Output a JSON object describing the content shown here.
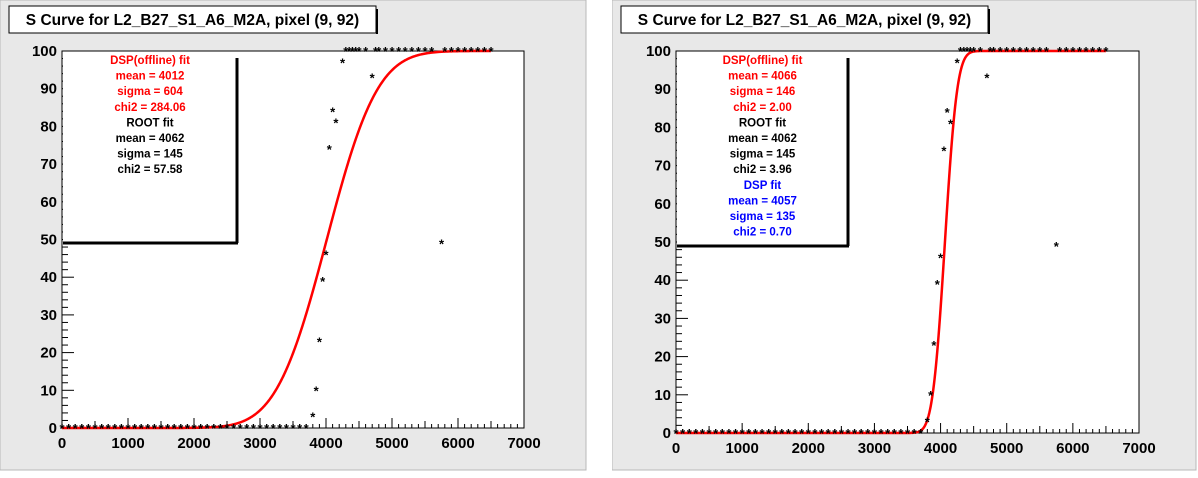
{
  "chart_data": [
    {
      "type": "scatter",
      "title": "S Curve for L2_B27_S1_A6_M2A, pixel (9, 92)",
      "xlim": [
        0,
        7000
      ],
      "ylim": [
        0,
        100
      ],
      "xticks": [
        "0",
        "1000",
        "2000",
        "3000",
        "4000",
        "5000",
        "6000",
        "7000"
      ],
      "yticks": [
        "0",
        "10",
        "20",
        "30",
        "40",
        "50",
        "60",
        "70",
        "80",
        "90",
        "100"
      ],
      "series": [
        {
          "kind": "points",
          "color": "#000000",
          "points": [
            [
              0,
              0
            ],
            [
              100,
              0
            ],
            [
              200,
              0
            ],
            [
              300,
              0
            ],
            [
              400,
              0
            ],
            [
              500,
              0
            ],
            [
              600,
              0
            ],
            [
              700,
              0
            ],
            [
              800,
              0
            ],
            [
              900,
              0
            ],
            [
              1000,
              0
            ],
            [
              1100,
              0
            ],
            [
              1200,
              0
            ],
            [
              1300,
              0
            ],
            [
              1400,
              0
            ],
            [
              1500,
              0
            ],
            [
              1600,
              0
            ],
            [
              1700,
              0
            ],
            [
              1800,
              0
            ],
            [
              1900,
              0
            ],
            [
              2000,
              0
            ],
            [
              2100,
              0
            ],
            [
              2200,
              0
            ],
            [
              2300,
              0
            ],
            [
              2400,
              0
            ],
            [
              2500,
              0
            ],
            [
              2600,
              0
            ],
            [
              2700,
              0
            ],
            [
              2800,
              0
            ],
            [
              2900,
              0
            ],
            [
              3000,
              0
            ],
            [
              3100,
              0
            ],
            [
              3200,
              0
            ],
            [
              3300,
              0
            ],
            [
              3400,
              0
            ],
            [
              3500,
              0
            ],
            [
              3600,
              0
            ],
            [
              3700,
              0
            ],
            [
              3800,
              3
            ],
            [
              3850,
              10
            ],
            [
              3900,
              23
            ],
            [
              3950,
              39
            ],
            [
              4000,
              46
            ],
            [
              4050,
              74
            ],
            [
              4100,
              84
            ],
            [
              4150,
              81
            ],
            [
              4250,
              97
            ],
            [
              4300,
              100
            ],
            [
              4350,
              100
            ],
            [
              4400,
              100
            ],
            [
              4450,
              100
            ],
            [
              4500,
              100
            ],
            [
              4600,
              100
            ],
            [
              4700,
              93
            ],
            [
              4750,
              100
            ],
            [
              4800,
              100
            ],
            [
              4900,
              100
            ],
            [
              5000,
              100
            ],
            [
              5100,
              100
            ],
            [
              5200,
              100
            ],
            [
              5300,
              100
            ],
            [
              5400,
              100
            ],
            [
              5500,
              100
            ],
            [
              5600,
              100
            ],
            [
              5750,
              49
            ],
            [
              5800,
              100
            ],
            [
              5900,
              100
            ],
            [
              6000,
              100
            ],
            [
              6100,
              100
            ],
            [
              6200,
              100
            ],
            [
              6300,
              100
            ],
            [
              6400,
              100
            ],
            [
              6500,
              100
            ]
          ]
        },
        {
          "kind": "erf-fit",
          "color": "#ff0000",
          "mean": 4012,
          "sigma": 604
        }
      ],
      "legend": {
        "placement": "top-left",
        "lines": [
          {
            "text": "DSP(offline) fit",
            "color": "#ff0000"
          },
          {
            "text": "mean = 4012",
            "color": "#ff0000"
          },
          {
            "text": "sigma = 604",
            "color": "#ff0000"
          },
          {
            "text": "chi2 = 284.06",
            "color": "#ff0000"
          },
          {
            "text": "ROOT fit",
            "color": "#000000"
          },
          {
            "text": "mean = 4062",
            "color": "#000000"
          },
          {
            "text": "sigma = 145",
            "color": "#000000"
          },
          {
            "text": "chi2 = 57.58",
            "color": "#000000"
          }
        ]
      }
    },
    {
      "type": "scatter",
      "title": "S Curve for L2_B27_S1_A6_M2A, pixel (9, 92)",
      "xlim": [
        0,
        7000
      ],
      "ylim": [
        0,
        100
      ],
      "xticks": [
        "0",
        "1000",
        "2000",
        "3000",
        "4000",
        "5000",
        "6000",
        "7000"
      ],
      "yticks": [
        "0",
        "10",
        "20",
        "30",
        "40",
        "50",
        "60",
        "70",
        "80",
        "90",
        "100"
      ],
      "series": [
        {
          "kind": "points",
          "color": "#000000",
          "points": [
            [
              0,
              0
            ],
            [
              100,
              0
            ],
            [
              200,
              0
            ],
            [
              300,
              0
            ],
            [
              400,
              0
            ],
            [
              500,
              0
            ],
            [
              600,
              0
            ],
            [
              700,
              0
            ],
            [
              800,
              0
            ],
            [
              900,
              0
            ],
            [
              1000,
              0
            ],
            [
              1100,
              0
            ],
            [
              1200,
              0
            ],
            [
              1300,
              0
            ],
            [
              1400,
              0
            ],
            [
              1500,
              0
            ],
            [
              1600,
              0
            ],
            [
              1700,
              0
            ],
            [
              1800,
              0
            ],
            [
              1900,
              0
            ],
            [
              2000,
              0
            ],
            [
              2100,
              0
            ],
            [
              2200,
              0
            ],
            [
              2300,
              0
            ],
            [
              2400,
              0
            ],
            [
              2500,
              0
            ],
            [
              2600,
              0
            ],
            [
              2700,
              0
            ],
            [
              2800,
              0
            ],
            [
              2900,
              0
            ],
            [
              3000,
              0
            ],
            [
              3100,
              0
            ],
            [
              3200,
              0
            ],
            [
              3300,
              0
            ],
            [
              3400,
              0
            ],
            [
              3500,
              0
            ],
            [
              3600,
              0
            ],
            [
              3700,
              0
            ],
            [
              3800,
              3
            ],
            [
              3850,
              10
            ],
            [
              3900,
              23
            ],
            [
              3950,
              39
            ],
            [
              4000,
              46
            ],
            [
              4050,
              74
            ],
            [
              4100,
              84
            ],
            [
              4150,
              81
            ],
            [
              4250,
              97
            ],
            [
              4300,
              100
            ],
            [
              4350,
              100
            ],
            [
              4400,
              100
            ],
            [
              4450,
              100
            ],
            [
              4500,
              100
            ],
            [
              4600,
              100
            ],
            [
              4700,
              93
            ],
            [
              4750,
              100
            ],
            [
              4800,
              100
            ],
            [
              4900,
              100
            ],
            [
              5000,
              100
            ],
            [
              5100,
              100
            ],
            [
              5200,
              100
            ],
            [
              5300,
              100
            ],
            [
              5400,
              100
            ],
            [
              5500,
              100
            ],
            [
              5600,
              100
            ],
            [
              5750,
              49
            ],
            [
              5800,
              100
            ],
            [
              5900,
              100
            ],
            [
              6000,
              100
            ],
            [
              6100,
              100
            ],
            [
              6200,
              100
            ],
            [
              6300,
              100
            ],
            [
              6400,
              100
            ],
            [
              6500,
              100
            ]
          ]
        },
        {
          "kind": "erf-fit",
          "color": "#ff0000",
          "mean": 4066,
          "sigma": 146
        }
      ],
      "legend": {
        "placement": "top-left",
        "lines": [
          {
            "text": "DSP(offline) fit",
            "color": "#ff0000"
          },
          {
            "text": "mean = 4066",
            "color": "#ff0000"
          },
          {
            "text": "sigma = 146",
            "color": "#ff0000"
          },
          {
            "text": "chi2 = 2.00",
            "color": "#ff0000"
          },
          {
            "text": "ROOT fit",
            "color": "#000000"
          },
          {
            "text": "mean = 4062",
            "color": "#000000"
          },
          {
            "text": "sigma = 145",
            "color": "#000000"
          },
          {
            "text": "chi2 = 3.96",
            "color": "#000000"
          },
          {
            "text": "DSP fit",
            "color": "#0000ff"
          },
          {
            "text": "mean = 4057",
            "color": "#0000ff"
          },
          {
            "text": "sigma = 135",
            "color": "#0000ff"
          },
          {
            "text": "chi2 = 0.70",
            "color": "#0000ff"
          }
        ]
      }
    }
  ]
}
